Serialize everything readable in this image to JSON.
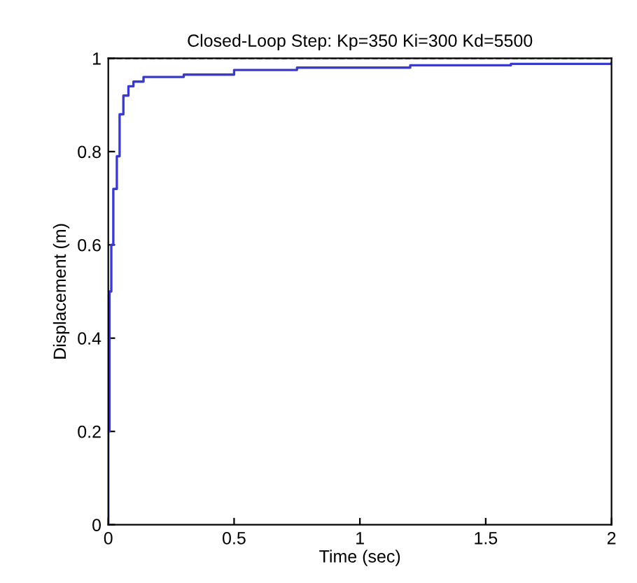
{
  "chart_data": {
    "type": "step",
    "title": "Closed-Loop Step: Kp=350 Ki=300 Kd=5500",
    "xlabel": "Time (sec)",
    "ylabel": "Displacement (m)",
    "x": [
      0,
      0,
      0.005,
      0.012,
      0.02,
      0.034,
      0.045,
      0.06,
      0.08,
      0.1,
      0.14,
      0.3,
      0.5,
      0.75,
      1.2,
      1.6,
      2
    ],
    "series": [
      {
        "color": "#3a3acc",
        "values": [
          0,
          0.2,
          0.5,
          0.6,
          0.72,
          0.79,
          0.88,
          0.92,
          0.94,
          0.95,
          0.96,
          0.965,
          0.975,
          0.98,
          0.985,
          0.988,
          0.99
        ]
      }
    ],
    "xlim": [
      0,
      2
    ],
    "ylim": [
      0,
      1
    ],
    "xticks": [
      0,
      0.5,
      1,
      1.5,
      2
    ],
    "yticks": [
      0,
      0.2,
      0.4,
      0.6,
      0.8,
      1
    ],
    "ref_lines": [
      {
        "axis": "y",
        "value": 1,
        "color": "#000000",
        "line_style": "dashed"
      }
    ],
    "grid": false,
    "line_style": "solid",
    "marker": "none"
  }
}
